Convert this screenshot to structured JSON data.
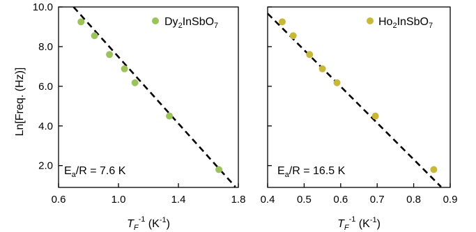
{
  "chart_data": [
    {
      "type": "scatter",
      "panel": "left",
      "xlabel": "T_F^-1 (K^-1)",
      "ylabel": "Ln[Freq. (Hz)]",
      "xlim": [
        0.6,
        1.8
      ],
      "ylim": [
        0.9,
        10.0
      ],
      "x_ticks": [
        0.6,
        1.0,
        1.4,
        1.8
      ],
      "x_tick_labels": [
        "0.6",
        "1.0",
        "1.4",
        "1.8"
      ],
      "y_ticks": [
        2.0,
        4.0,
        6.0,
        8.0,
        10.0
      ],
      "y_tick_labels": [
        "2.0",
        "4.0",
        "6.0",
        "8.0",
        "10.0"
      ],
      "series": [
        {
          "name": "Dy2InSbO7",
          "color": "#9bc35a",
          "x": [
            0.75,
            0.84,
            0.94,
            1.04,
            1.11,
            1.34,
            1.67
          ],
          "y": [
            9.25,
            8.55,
            7.6,
            6.88,
            6.18,
            4.5,
            1.8
          ]
        }
      ],
      "fit_line": {
        "x": [
          0.7,
          1.78
        ],
        "y": [
          10.0,
          0.93
        ]
      },
      "legend": {
        "label_base": "Dy",
        "sub1": "2",
        "label_mid": "InSbO",
        "sub2": "7",
        "position": "top-right"
      },
      "annotation": {
        "base": "E",
        "sub": "a",
        "rest": "/R = 7.6 K"
      },
      "grid": false
    },
    {
      "type": "scatter",
      "panel": "right",
      "xlabel": "T_F^-1 (K^-1)",
      "xlim": [
        0.4,
        0.9
      ],
      "ylim": [
        0.9,
        10.0
      ],
      "x_ticks": [
        0.4,
        0.5,
        0.6,
        0.7,
        0.8,
        0.9
      ],
      "x_tick_labels": [
        "0.4",
        "0.5",
        "0.6",
        "0.7",
        "0.8",
        "0.9"
      ],
      "series": [
        {
          "name": "Ho2InSbO7",
          "color": "#c8b83a",
          "x": [
            0.44,
            0.47,
            0.515,
            0.55,
            0.59,
            0.695,
            0.855
          ],
          "y": [
            9.25,
            8.55,
            7.6,
            6.88,
            6.18,
            4.5,
            1.8
          ]
        }
      ],
      "fit_line": {
        "x": [
          0.4,
          0.875
        ],
        "y": [
          9.67,
          0.93
        ]
      },
      "legend": {
        "label_base": "Ho",
        "sub1": "2",
        "label_mid": "InSbO",
        "sub2": "7",
        "position": "top-right"
      },
      "annotation": {
        "base": "E",
        "sub": "a",
        "rest": "/R = 16.5 K"
      },
      "grid": false
    }
  ],
  "axis_text": {
    "ylabel": "Ln[Freq. (Hz)]",
    "xlabel_left": {
      "T": "T",
      "F": "F",
      "exp": "-1",
      "unit_open": " (K",
      "unit_exp": "-1",
      "unit_close": ")"
    },
    "xlabel_right": {
      "T": "T",
      "F": "F",
      "exp": "-1",
      "unit_open": " (K",
      "unit_exp": "-1",
      "unit_close": ")"
    }
  }
}
